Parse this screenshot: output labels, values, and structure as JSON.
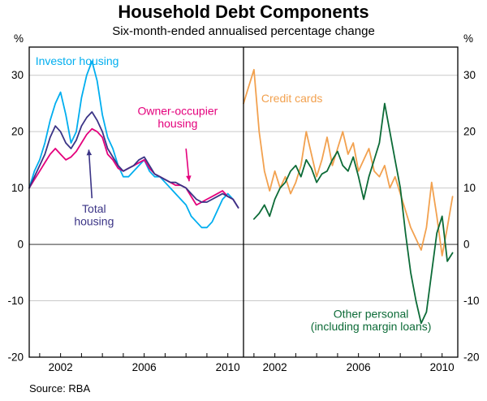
{
  "header": {
    "title": "Household Debt Components",
    "subtitle": "Six-month-ended annualised percentage change"
  },
  "footer": {
    "source": "Source: RBA"
  },
  "chart_data": {
    "type": "line",
    "title": "Household Debt Components",
    "subtitle": "Six-month-ended annualised percentage change",
    "unit_left": "%",
    "unit_right": "%",
    "ylim": [
      -20,
      35
    ],
    "yticks": [
      -20,
      -10,
      0,
      10,
      20,
      30
    ],
    "xlim": [
      2000.5,
      2010.75
    ],
    "xticks": [
      2001,
      2002,
      2003,
      2004,
      2005,
      2006,
      2007,
      2008,
      2009,
      2010
    ],
    "xtick_labels": [
      2002,
      2006,
      2010
    ],
    "x_start": 2000.5,
    "x_step": 0.25,
    "grid": true,
    "grid_color": "#c9c9c9",
    "zero_line_color": "#777777",
    "frame_color": "#000000",
    "panels": [
      {
        "name": "housing",
        "series": [
          {
            "name": "Investor housing",
            "color": "#00aeef",
            "y": [
              10,
              13,
              15,
              18,
              22,
              25,
              27,
              23,
              18,
              20,
              26,
              30,
              32.5,
              29,
              23,
              19,
              17,
              14,
              12,
              12,
              13,
              14,
              15,
              13,
              12,
              12,
              11,
              10,
              9,
              8,
              7,
              5,
              4,
              3,
              3,
              4,
              6,
              8,
              9,
              8,
              6.5
            ]
          },
          {
            "name": "Owner-occupier housing",
            "color": "#e4007c",
            "y": [
              10,
              11.5,
              13,
              14.5,
              16,
              17,
              16,
              15,
              15.5,
              16.5,
              18,
              19.5,
              20.5,
              20,
              19,
              16,
              15,
              13.5,
              13,
              13.5,
              14,
              14.5,
              15,
              13.5,
              12.5,
              12,
              11.5,
              11,
              10.5,
              10.5,
              10,
              8.5,
              7,
              7.5,
              8,
              8.5,
              9,
              9.5,
              8.5,
              8,
              6.5
            ]
          },
          {
            "name": "Total housing",
            "color": "#3b3486",
            "y": [
              10,
              12,
              14,
              16,
              19,
              21,
              20,
              18,
              17,
              18.5,
              21,
              22.5,
              23.5,
              22,
              20,
              17,
              15.5,
              14,
              13,
              13.5,
              14,
              15,
              15.5,
              14,
              12.5,
              12,
              11.5,
              11,
              11,
              10.5,
              10,
              9,
              8,
              7.5,
              7.5,
              8,
              8.5,
              9,
              8.5,
              8,
              6.5
            ]
          }
        ]
      },
      {
        "name": "personal",
        "series": [
          {
            "name": "Credit cards",
            "color": "#f2a14f",
            "y": [
              25,
              28,
              31,
              20,
              13,
              9.5,
              13,
              10,
              12,
              9,
              11,
              14,
              20,
              16,
              12,
              15,
              19,
              14,
              17,
              20,
              16,
              18,
              13,
              15,
              17,
              13,
              12,
              14,
              10,
              12,
              9,
              6,
              3,
              1,
              -1,
              3,
              11,
              5,
              -2,
              3,
              8.5
            ]
          },
          {
            "name": "Other personal (including margin loans)",
            "color": "#0c6b37",
            "y": [
              null,
              null,
              4.5,
              5.5,
              7,
              5,
              8,
              10,
              11,
              13,
              14,
              12,
              15,
              13.5,
              11,
              12.5,
              13,
              15,
              16.5,
              14,
              13,
              15.5,
              12,
              8,
              12,
              15,
              18,
              25,
              20,
              15,
              10,
              2,
              -5,
              -10,
              -14,
              -12,
              -5,
              2,
              5,
              -3,
              -1.5
            ]
          }
        ]
      }
    ],
    "annotations": [
      {
        "panel": 0,
        "lines": [
          "Investor housing"
        ],
        "x": 2000.8,
        "y": 31.8,
        "anchor": "start",
        "color": "#00aeef"
      },
      {
        "panel": 0,
        "lines": [
          "Owner-occupier",
          "housing"
        ],
        "x": 2007.6,
        "y": 23.0,
        "anchor": "middle",
        "color": "#e4007c",
        "arrow": {
          "x1": 2008.0,
          "y1": 17.0,
          "x2": 2008.15,
          "y2": 11.2
        }
      },
      {
        "panel": 0,
        "lines": [
          "Total",
          "housing"
        ],
        "x": 2003.6,
        "y": 5.6,
        "anchor": "middle",
        "color": "#3b3486",
        "arrow": {
          "x1": 2003.5,
          "y1": 8.2,
          "x2": 2003.35,
          "y2": 16.8
        }
      },
      {
        "panel": 1,
        "lines": [
          "Credit cards"
        ],
        "x": 2001.35,
        "y": 25.2,
        "anchor": "start",
        "color": "#f2a14f"
      },
      {
        "panel": 1,
        "lines": [
          "Other personal",
          "(including margin loans)"
        ],
        "x": 2006.6,
        "y": -13.0,
        "anchor": "middle",
        "color": "#0c6b37"
      }
    ]
  }
}
